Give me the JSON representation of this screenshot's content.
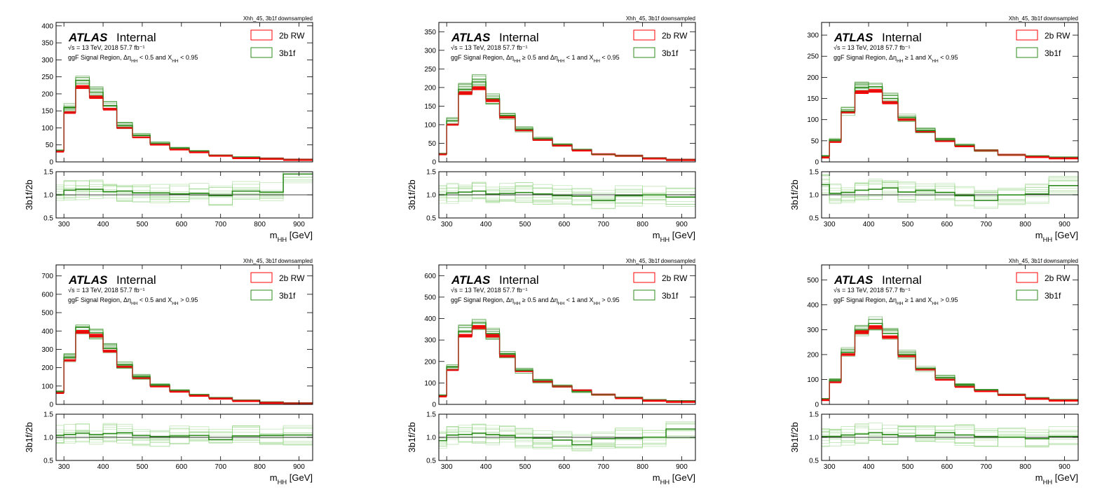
{
  "figure": {
    "corner_note": "Xhh_45, 3b1f downsampled",
    "atlas_label": "ATLAS",
    "atlas_status": "Internal",
    "energy_line": "√s = 13 TeV, 2018 57.7 fb⁻¹",
    "legend": {
      "ref": "2b RW",
      "target": "3b1f"
    },
    "ratio_ylabel": "3b1f/2b",
    "xlabel": "m_HH [GeV]",
    "colors": {
      "ref": "#ff0000",
      "ref_dark": "#c81e1e",
      "target": "#2e8b1e",
      "target_light": "#8fd27f",
      "refline": "#000000"
    }
  },
  "chart_data": [
    {
      "type": "histogram",
      "region": "ggF Signal  Region, Δη_HH < 0.5 and X_HH < 0.95",
      "xlim": [
        280,
        935
      ],
      "xticks": [
        300,
        400,
        500,
        600,
        700,
        800,
        900
      ],
      "ylim": [
        0,
        410
      ],
      "yticks": [
        0,
        50,
        100,
        150,
        200,
        250,
        300,
        350,
        400
      ],
      "ratio_ylim": [
        0.5,
        1.5
      ],
      "ratio_yticks": [
        0.5,
        1.0,
        1.5
      ],
      "bin_edges": [
        280,
        300,
        330,
        365,
        400,
        435,
        475,
        520,
        570,
        620,
        670,
        730,
        800,
        860,
        935
      ],
      "series": [
        {
          "name": "2b RW",
          "values": [
            32,
            145,
            220,
            190,
            155,
            100,
            73,
            52,
            38,
            30,
            20,
            13,
            11,
            8
          ]
        },
        {
          "name": "3b1f",
          "values": [
            34,
            160,
            240,
            205,
            165,
            107,
            78,
            55,
            40,
            31,
            20,
            14,
            11,
            8
          ]
        }
      ],
      "ratio": [
        1.0,
        1.1,
        1.12,
        1.12,
        1.07,
        1.08,
        1.04,
        1.04,
        1.02,
        1.03,
        0.98,
        1.08,
        1.06,
        1.45
      ]
    },
    {
      "type": "histogram",
      "region": "ggF Signal  Region, Δη_HH ≥ 0.5 and Δη_HH < 1 and X_HH < 0.95",
      "xlim": [
        280,
        935
      ],
      "xticks": [
        300,
        400,
        500,
        600,
        700,
        800,
        900
      ],
      "ylim": [
        0,
        375
      ],
      "yticks": [
        0,
        50,
        100,
        150,
        200,
        250,
        300,
        350
      ],
      "ratio_ylim": [
        0.5,
        1.5
      ],
      "ratio_yticks": [
        0.5,
        1.0,
        1.5
      ],
      "bin_edges": [
        280,
        300,
        330,
        365,
        400,
        435,
        475,
        520,
        570,
        620,
        670,
        730,
        800,
        860,
        935
      ],
      "series": [
        {
          "name": "2b RW",
          "values": [
            22,
            100,
            185,
            198,
            165,
            120,
            85,
            60,
            45,
            32,
            22,
            18,
            11,
            7
          ]
        },
        {
          "name": "3b1f",
          "values": [
            22,
            110,
            195,
            215,
            170,
            125,
            88,
            62,
            46,
            33,
            21,
            17,
            11,
            7
          ]
        }
      ],
      "ratio": [
        1.0,
        1.04,
        1.06,
        1.08,
        1.02,
        1.03,
        1.05,
        1.02,
        0.98,
        0.97,
        0.88,
        0.98,
        1.0,
        0.95
      ]
    },
    {
      "type": "histogram",
      "region": "ggF Signal  Region, Δη_HH ≥ 1 and X_HH < 0.95",
      "xlim": [
        280,
        935
      ],
      "xticks": [
        300,
        400,
        500,
        600,
        700,
        800,
        900
      ],
      "ylim": [
        0,
        330
      ],
      "yticks": [
        0,
        50,
        100,
        150,
        200,
        250,
        300
      ],
      "ratio_ylim": [
        0.5,
        1.5
      ],
      "ratio_yticks": [
        0.5,
        1.0,
        1.5
      ],
      "bin_edges": [
        280,
        300,
        330,
        365,
        400,
        435,
        475,
        520,
        570,
        620,
        670,
        730,
        800,
        860,
        935
      ],
      "series": [
        {
          "name": "2b RW",
          "values": [
            12,
            48,
            118,
            165,
            168,
            140,
            100,
            72,
            50,
            38,
            28,
            18,
            13,
            10
          ]
        },
        {
          "name": "3b1f",
          "values": [
            14,
            52,
            120,
            175,
            178,
            150,
            105,
            74,
            52,
            40,
            27,
            17,
            14,
            11
          ]
        }
      ],
      "ratio": [
        1.22,
        1.03,
        1.05,
        1.1,
        1.12,
        1.15,
        1.06,
        1.1,
        1.05,
        0.98,
        0.88,
        1.0,
        1.02,
        1.2
      ]
    },
    {
      "type": "histogram",
      "region": "ggF Signal  Region, Δη_HH < 0.5 and X_HH > 0.95",
      "xlim": [
        280,
        935
      ],
      "xticks": [
        300,
        400,
        500,
        600,
        700,
        800,
        900
      ],
      "ylim": [
        0,
        760
      ],
      "yticks": [
        0,
        100,
        200,
        300,
        400,
        500,
        600,
        700
      ],
      "ratio_ylim": [
        0.5,
        1.5
      ],
      "ratio_yticks": [
        0.5,
        1.0,
        1.5
      ],
      "bin_edges": [
        280,
        300,
        330,
        365,
        400,
        435,
        475,
        520,
        570,
        620,
        670,
        730,
        800,
        860,
        935
      ],
      "series": [
        {
          "name": "2b RW",
          "values": [
            65,
            240,
            395,
            375,
            290,
            205,
            145,
            100,
            72,
            50,
            35,
            22,
            12,
            8
          ]
        },
        {
          "name": "3b1f",
          "values": [
            68,
            255,
            420,
            390,
            305,
            215,
            150,
            104,
            74,
            52,
            36,
            23,
            13,
            8
          ]
        }
      ],
      "ratio": [
        1.04,
        1.06,
        1.09,
        1.06,
        1.08,
        1.1,
        1.04,
        1.02,
        1.03,
        1.04,
        0.95,
        1.03,
        1.04,
        1.05
      ]
    },
    {
      "type": "histogram",
      "region": "ggF Signal  Region, Δη_HH ≥ 0.5 and Δη_HH < 1 and X_HH > 0.95",
      "xlim": [
        280,
        935
      ],
      "xticks": [
        300,
        400,
        500,
        600,
        700,
        800,
        900
      ],
      "ylim": [
        0,
        650
      ],
      "yticks": [
        0,
        100,
        200,
        300,
        400,
        500,
        600
      ],
      "ratio_ylim": [
        0.5,
        1.5
      ],
      "ratio_yticks": [
        0.5,
        1.0,
        1.5
      ],
      "bin_edges": [
        280,
        300,
        330,
        365,
        400,
        435,
        475,
        520,
        570,
        620,
        670,
        730,
        800,
        860,
        935
      ],
      "series": [
        {
          "name": "2b RW",
          "values": [
            40,
            160,
            320,
            360,
            320,
            225,
            155,
            108,
            85,
            68,
            48,
            32,
            20,
            15
          ]
        },
        {
          "name": "3b1f",
          "values": [
            42,
            175,
            340,
            380,
            330,
            235,
            158,
            110,
            84,
            60,
            46,
            32,
            21,
            17
          ]
        }
      ],
      "ratio": [
        0.93,
        1.05,
        1.06,
        1.09,
        1.06,
        1.04,
        0.99,
        0.98,
        0.94,
        0.84,
        0.97,
        0.98,
        1.0,
        1.18
      ]
    },
    {
      "type": "histogram",
      "region": "ggF Signal  Region, Δη_HH ≥ 1 and X_HH > 0.95",
      "xlim": [
        280,
        935
      ],
      "xticks": [
        300,
        400,
        500,
        600,
        700,
        800,
        900
      ],
      "ylim": [
        0,
        560
      ],
      "yticks": [
        0,
        100,
        200,
        300,
        400,
        500
      ],
      "ratio_ylim": [
        0.5,
        1.5
      ],
      "ratio_yticks": [
        0.5,
        1.0,
        1.5
      ],
      "bin_edges": [
        280,
        300,
        330,
        365,
        400,
        435,
        475,
        520,
        570,
        620,
        670,
        730,
        800,
        860,
        935
      ],
      "series": [
        {
          "name": "2b RW",
          "values": [
            20,
            90,
            200,
            290,
            310,
            270,
            195,
            140,
            100,
            72,
            55,
            40,
            25,
            18
          ]
        },
        {
          "name": "3b1f",
          "values": [
            22,
            95,
            210,
            300,
            325,
            285,
            200,
            145,
            108,
            78,
            58,
            40,
            26,
            19
          ]
        }
      ],
      "ratio": [
        1.02,
        1.02,
        1.05,
        1.07,
        1.1,
        1.06,
        1.03,
        1.04,
        1.1,
        1.05,
        1.02,
        1.0,
        0.97,
        1.02
      ]
    }
  ]
}
